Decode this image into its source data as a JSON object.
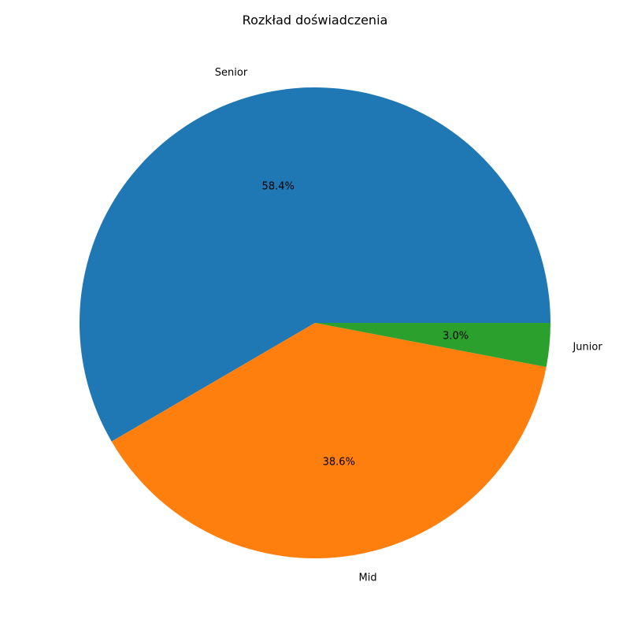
{
  "chart_data": {
    "type": "pie",
    "title": "Rozkład doświadczenia",
    "categories": [
      "Senior",
      "Mid",
      "Junior"
    ],
    "values": [
      58.4,
      38.6,
      3.0
    ],
    "percent_labels": [
      "58.4%",
      "38.6%",
      "3.0%"
    ],
    "colors": [
      "#1f77b4",
      "#ff7f0e",
      "#2ca02c"
    ],
    "legend": "none"
  }
}
